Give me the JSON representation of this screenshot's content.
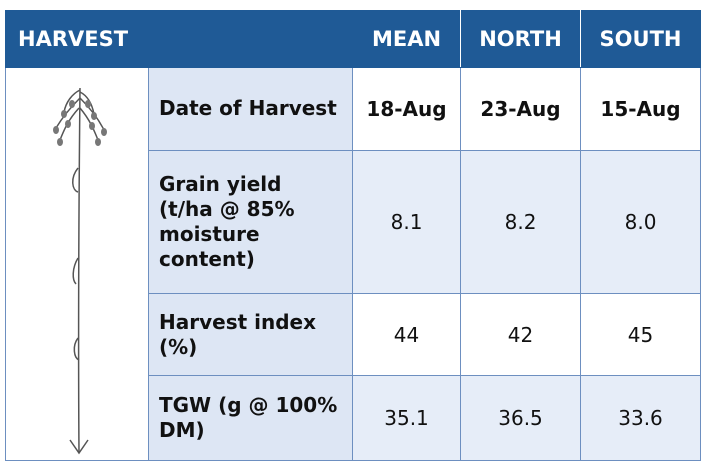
{
  "header": {
    "title": "HARVEST",
    "columns": [
      "MEAN",
      "NORTH",
      "SOUTH"
    ]
  },
  "table": {
    "rows": [
      [
        "Date of Harvest",
        "18-Aug",
        "23-Aug",
        "15-Aug"
      ],
      [
        "Grain yield (t/ha @ 85% moisture content)",
        "8.1",
        "8.2",
        "8.0"
      ],
      [
        "Harvest index (%)",
        "44",
        "42",
        "45"
      ],
      [
        "TGW (g @ 100% DM)",
        "35.1",
        "36.5",
        "33.6"
      ]
    ]
  }
}
